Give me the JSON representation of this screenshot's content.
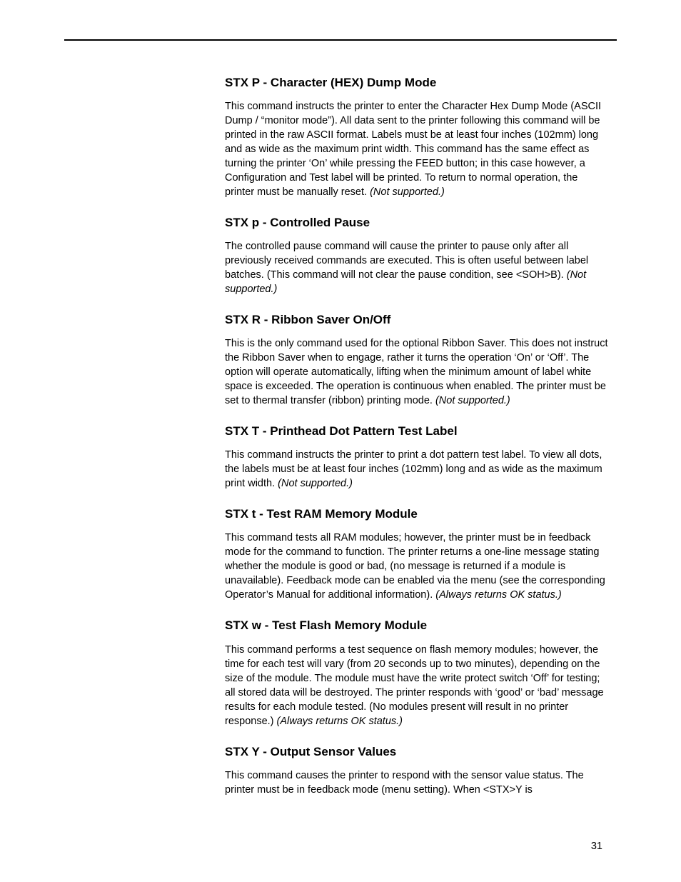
{
  "page_number": "31",
  "sections": [
    {
      "heading": "STX P - Character (HEX) Dump Mode",
      "body_pre": "This command instructs the printer to enter the Character Hex Dump Mode (ASCII Dump / “monitor mode”). All data sent to the printer following this command will be printed in the raw ASCII format. Labels must be at least four inches (102mm) long and as wide as the maximum print width. This command has the same effect as turning the printer ‘On’ while pressing the FEED button; in this case however, a Configuration and Test label will be printed. To return to normal operation, the printer must be manually reset. ",
      "body_italic": "(Not supported.)"
    },
    {
      "heading": "STX p - Controlled Pause",
      "body_pre": "The controlled pause command will cause the printer to pause only after all previously received commands are executed. This is often useful between label batches. (This command will not clear the pause condition, see <SOH>B). ",
      "body_italic": "(Not supported.)"
    },
    {
      "heading": "STX R - Ribbon Saver On/Off",
      "body_pre": "This is the only command used for the optional Ribbon Saver. This does not instruct the Ribbon Saver when to engage, rather it turns the operation ‘On’ or ‘Off’. The option will operate automatically, lifting when the minimum amount of label white space is exceeded. The operation is continuous when enabled. The printer must be set to thermal transfer (ribbon) printing mode. ",
      "body_italic": "(Not supported.)"
    },
    {
      "heading": "STX T - Printhead Dot Pattern Test Label",
      "body_pre": "This command instructs the printer to print a dot pattern test label. To view all dots, the labels must be at least four inches (102mm) long and as wide as the maximum print width. ",
      "body_italic": "(Not supported.)"
    },
    {
      "heading": "STX t - Test RAM Memory Module",
      "body_pre": "This command tests all RAM modules; however, the printer must be in feedback mode for the command to function. The printer returns a one-line message stating whether the module is good or bad, (no message is returned if a module is unavailable). Feedback mode can be enabled via the menu (see the corresponding Operator’s Manual for additional information). ",
      "body_italic": "(Always returns OK status.)"
    },
    {
      "heading": "STX w - Test Flash Memory Module",
      "body_pre": "This command performs a test sequence on flash memory modules; however, the time for each test will vary (from 20 seconds up to two minutes), depending on the size of the module. The module must have the write protect switch ‘Off’ for testing; all stored data will be destroyed. The printer responds with ‘good’ or ‘bad’ message results for each module tested. (No modules present will result in no printer response.) ",
      "body_italic": "(Always returns OK status.)"
    },
    {
      "heading": "STX Y - Output Sensor Values",
      "body_pre": "This command causes the printer to respond with the sensor value status. The printer must be in feedback mode (menu setting). When <STX>Y is",
      "body_italic": ""
    }
  ]
}
